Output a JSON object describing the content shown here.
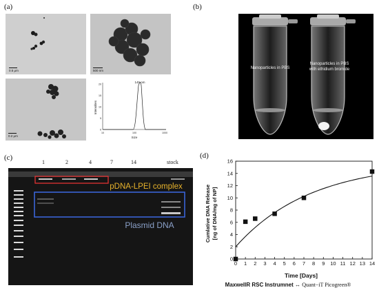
{
  "panels": {
    "a": {
      "label": "(a)",
      "tem": [
        {
          "scale": "0.5 μm"
        },
        {
          "scale": "500 nm"
        },
        {
          "scale": "0.2 μm"
        }
      ],
      "dls": {
        "peak_label": "145 nm",
        "ylabel": "Intensities",
        "xlabel": "Size",
        "xticks": [
          "10",
          "100",
          "1000"
        ],
        "yticks": [
          "0",
          "5",
          "10",
          "15",
          "20"
        ]
      }
    },
    "b": {
      "label": "(b)",
      "tube1": "Nanoparticles in PBS",
      "tube2_line1": "Nanoparticles in PBS",
      "tube2_line2": "with ethidium bromide"
    },
    "c": {
      "label": "(c)",
      "lanes": [
        "1",
        "2",
        "4",
        "7",
        "14",
        "stock"
      ],
      "complex_label": "pDNA-LPEI complex",
      "plasmid_label": "Plasmid DNA",
      "complex_color": "#e8b32c",
      "plasmid_color": "#8aa0c8"
    },
    "d": {
      "label": "(d)",
      "caption_main": "MaxwellR RSC Instrumnet ↔ ",
      "caption_tail": "Quant−iT Picogreen®"
    }
  },
  "chart_data": {
    "type": "scatter",
    "xlabel": "Time [Days]",
    "ylabel_line1": "Cumlative DNA Release",
    "ylabel_line2": "[ng of DNA/mg of NP]",
    "xlim": [
      0,
      14
    ],
    "ylim": [
      0,
      16
    ],
    "xticks": [
      0,
      1,
      2,
      3,
      4,
      5,
      6,
      7,
      8,
      9,
      10,
      11,
      12,
      13,
      14
    ],
    "yticks": [
      0,
      2,
      4,
      6,
      8,
      10,
      12,
      14,
      16
    ],
    "points": [
      {
        "x": 0,
        "y": 0,
        "err": 0
      },
      {
        "x": 1,
        "y": 6.1,
        "err": 0.2
      },
      {
        "x": 2,
        "y": 6.6,
        "err": 0.2
      },
      {
        "x": 4,
        "y": 7.4,
        "err": 0.25
      },
      {
        "x": 7,
        "y": 10.0,
        "err": 0.35
      },
      {
        "x": 14,
        "y": 14.3,
        "err": 0.5
      }
    ],
    "fit": {
      "type": "exponential",
      "y0": 2.0,
      "plateau": 15.8,
      "k": 0.13
    },
    "grid": false,
    "legend": "none"
  }
}
